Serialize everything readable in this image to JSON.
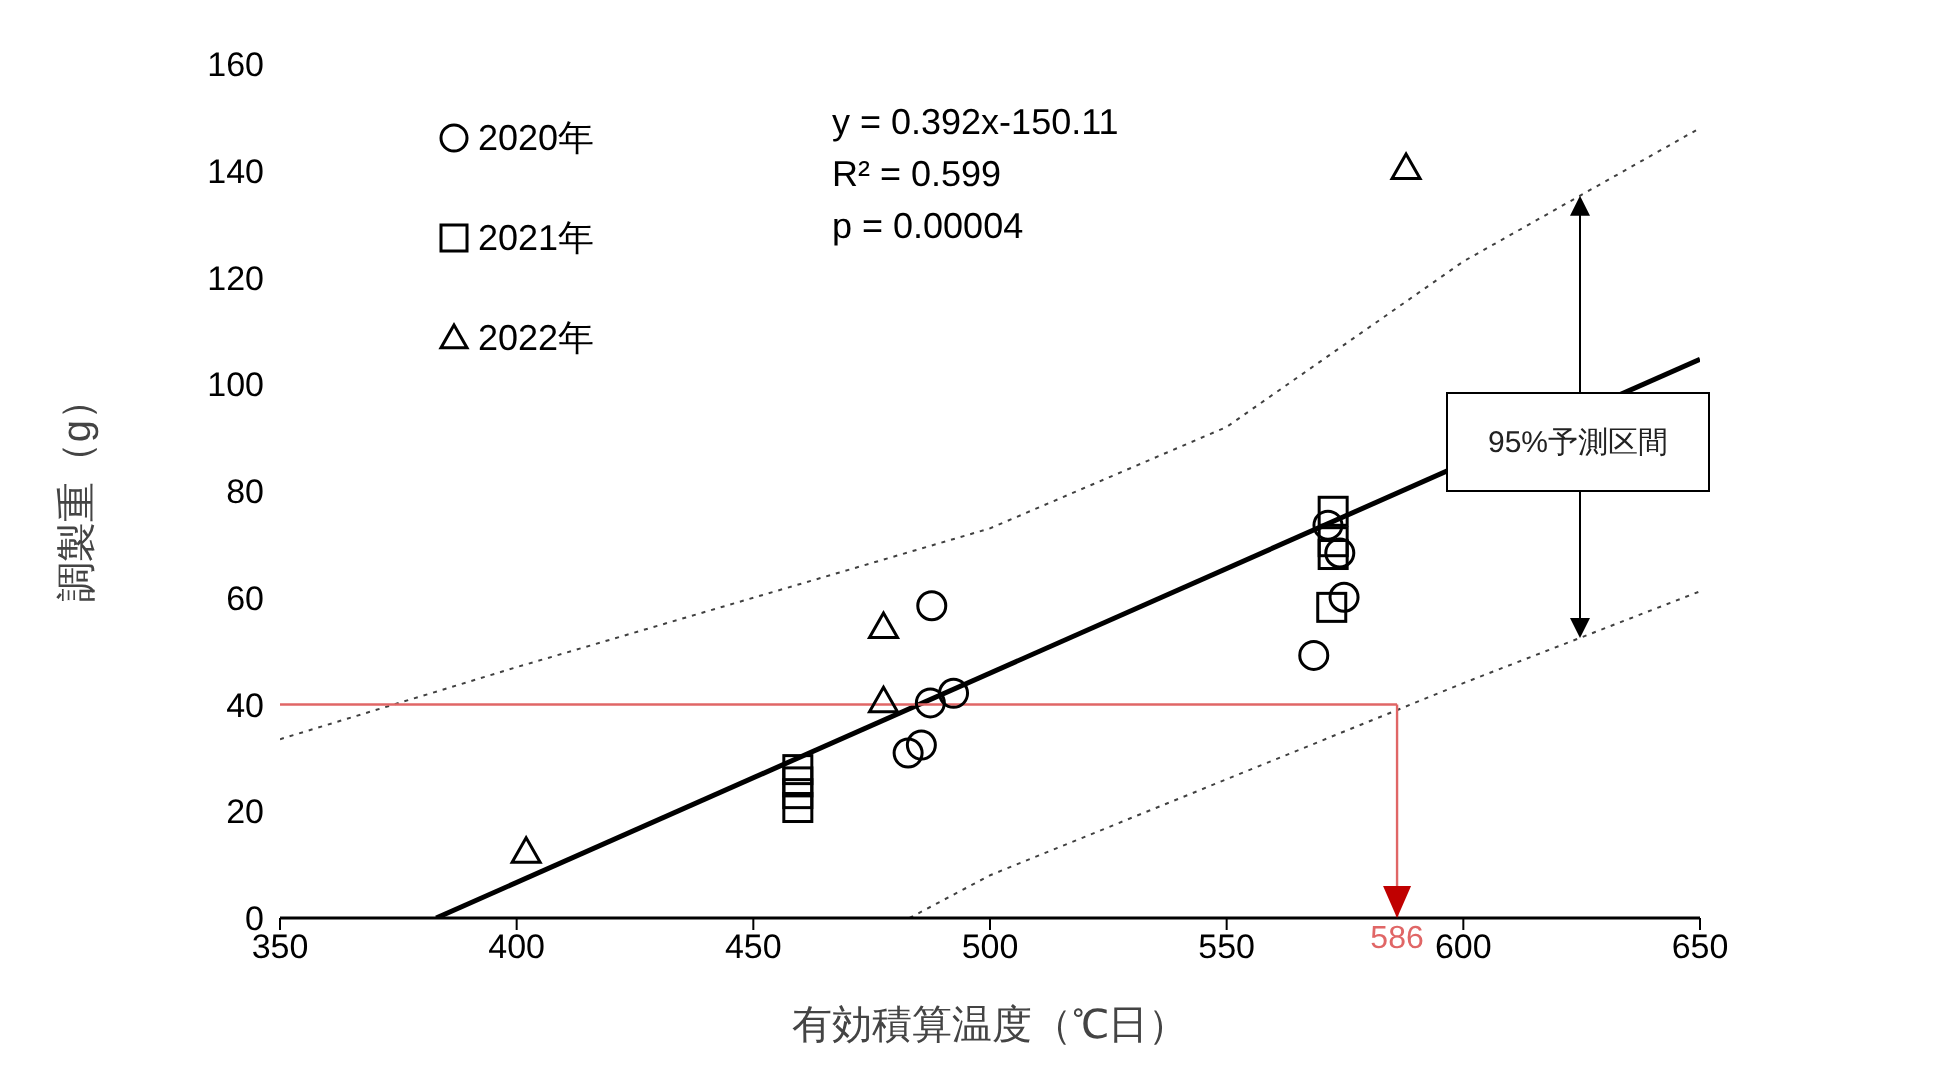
{
  "chart_data": {
    "type": "scatter",
    "xlabel": "有効積算温度（℃日）",
    "ylabel": "調製重（g）",
    "xlim": [
      350,
      650
    ],
    "xticks": [
      350,
      400,
      450,
      500,
      550,
      600,
      650
    ],
    "ylim": [
      0,
      160
    ],
    "yticks": [
      0,
      20,
      40,
      60,
      80,
      100,
      120,
      140,
      160
    ],
    "legend": "top left",
    "tick_labels": "xy",
    "series": [
      {
        "name": "2020年",
        "color": "#000000",
        "marker": "circle",
        "x": [
          487.7,
          492.3,
          487.4,
          485.5,
          482.7,
          568.4,
          571.4,
          573.9,
          574.8
        ],
        "values": [
          58.5,
          42.1,
          40.3,
          32.4,
          30.9,
          49.2,
          73.6,
          68.4,
          60.1
        ]
      },
      {
        "name": "2021年",
        "color": "#000000",
        "marker": "square",
        "x": [
          459.4,
          459.4,
          459.4,
          459.4,
          572.5,
          572.5,
          572.5,
          572.2
        ],
        "values": [
          27.8,
          25.5,
          23.3,
          20.7,
          76.2,
          70.5,
          68.1,
          58.2
        ]
      },
      {
        "name": "2022年",
        "color": "#000000",
        "marker": "triangle",
        "x": [
          402,
          477.5,
          477.5,
          587.9
        ],
        "values": [
          12.4,
          54.5,
          40.6,
          140.5
        ]
      },
      {
        "type": "line",
        "color": "#000000",
        "line_style": "solid",
        "marker": "none",
        "x": [
          383,
          650
        ],
        "values": [
          0,
          104.7
        ]
      },
      {
        "type": "line",
        "color": "#404040",
        "line_style": "dotted",
        "marker": "none",
        "x": [
          350,
          400,
          450,
          500,
          550,
          600,
          650
        ],
        "values": [
          33.5,
          47,
          60,
          73,
          92,
          123,
          148
        ]
      },
      {
        "type": "line",
        "color": "#404040",
        "line_style": "dotted",
        "marker": "none",
        "x": [
          483,
          500,
          550,
          600,
          650
        ],
        "values": [
          0,
          8,
          26,
          44,
          61.2
        ]
      }
    ],
    "ref_lines": [
      {
        "axis": "y",
        "value": 40,
        "label": null,
        "color": "#e06666"
      },
      {
        "axis": "x",
        "value": 586,
        "label": "586",
        "color": "#e06666"
      }
    ],
    "annotations": [
      "y = 0.392x-150.11",
      "R² = 0.599",
      "p = 0.00004",
      "95%予測区間"
    ]
  }
}
